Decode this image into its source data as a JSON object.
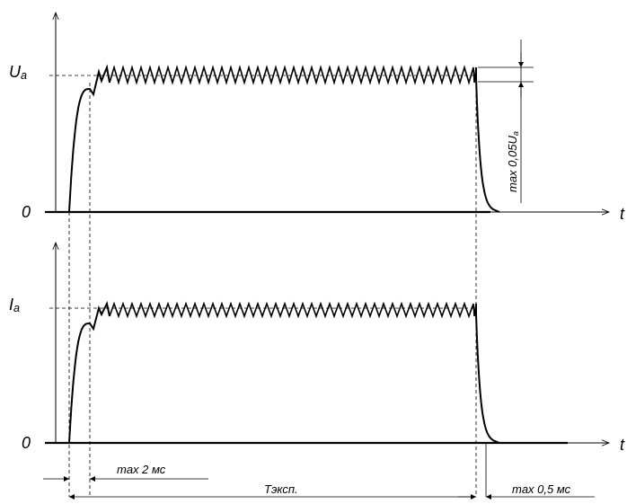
{
  "labels": {
    "voltage_axis": "Ua",
    "current_axis": "Ia",
    "zero_top": "0",
    "zero_bottom": "0",
    "time_top": "t",
    "time_bottom": "t",
    "ripple": "max 0,05Ua",
    "rise_time": "max 2 мс",
    "exposure": "Tэксп.",
    "fall_time": "max 0,5 мс"
  },
  "colors": {
    "line": "#000000",
    "background": "#ffffff"
  }
}
